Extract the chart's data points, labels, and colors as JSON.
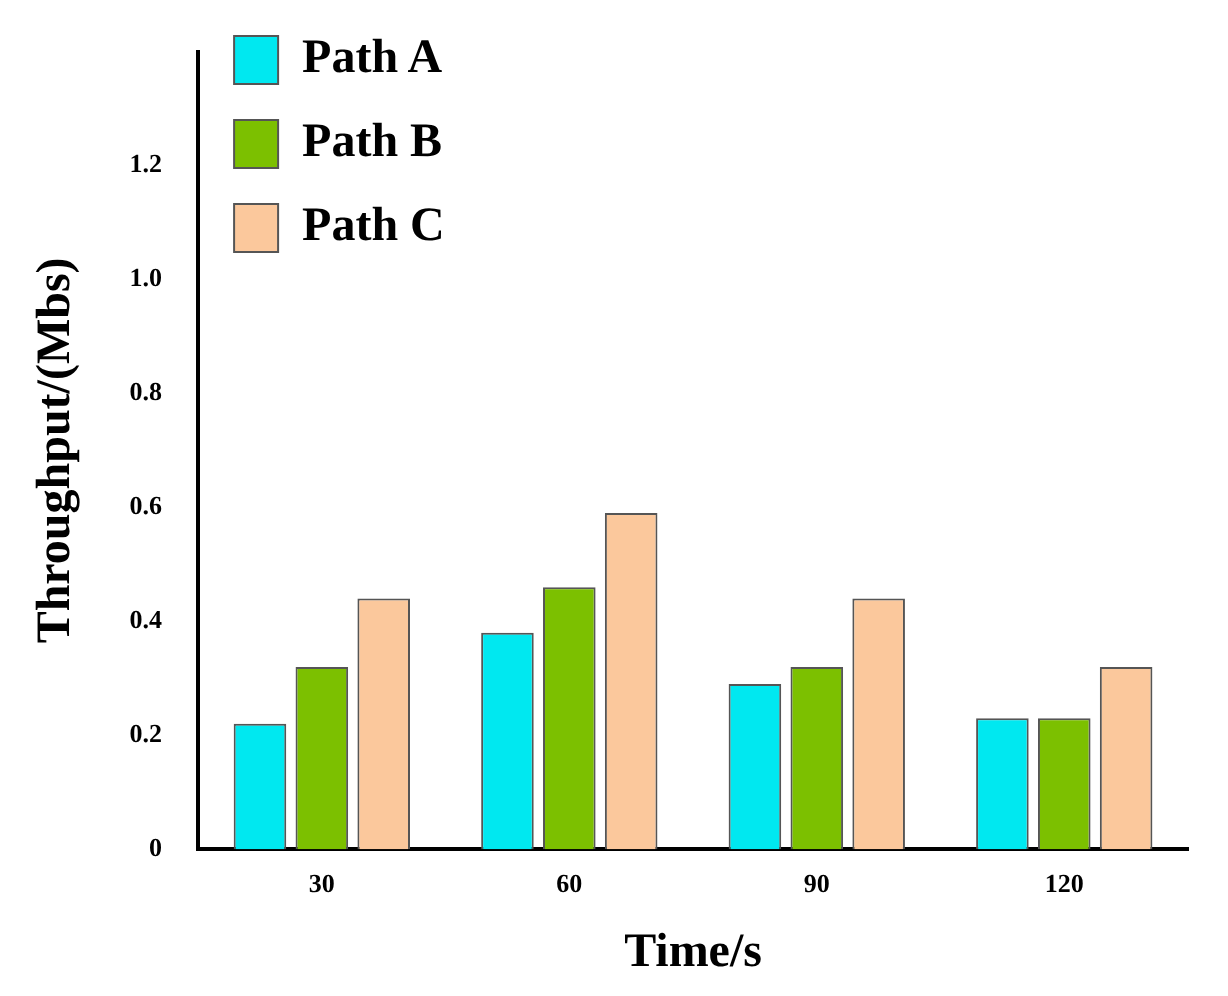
{
  "chart_data": {
    "type": "bar",
    "xlabel": "Time/s",
    "ylabel": "Throughput/(Mbs)",
    "categories": [
      "30",
      "60",
      "90",
      "120"
    ],
    "series": [
      {
        "name": "Path A",
        "color": "#00e8f0",
        "values": [
          0.22,
          0.38,
          0.29,
          0.23
        ]
      },
      {
        "name": "Path B",
        "color": "#7cc000",
        "values": [
          0.32,
          0.46,
          0.32,
          0.23
        ]
      },
      {
        "name": "Path C",
        "color": "#fbc89c",
        "values": [
          0.44,
          0.59,
          0.44,
          0.32
        ]
      }
    ],
    "ylim": [
      0,
      1.4
    ],
    "yticks": [
      0,
      0.2,
      0.4,
      0.6,
      0.8,
      {
        "value": 1,
        "label": "1.0"
      },
      1.2
    ],
    "grid": false,
    "legend": "top left"
  }
}
